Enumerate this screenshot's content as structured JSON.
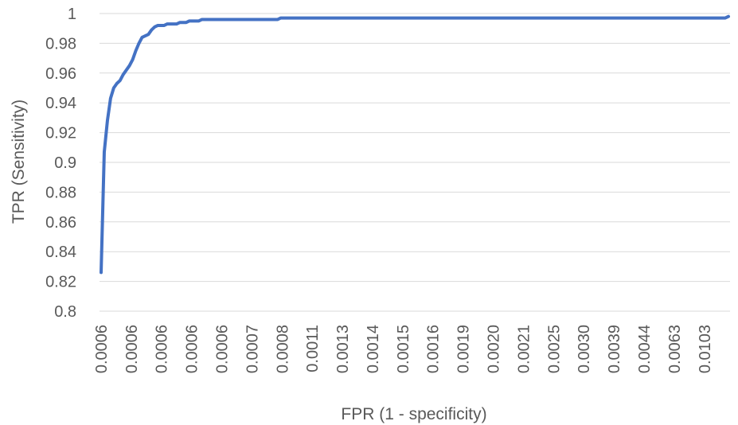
{
  "chart_data": {
    "type": "line",
    "title": "",
    "xlabel": "FPR (1 - specificity)",
    "ylabel": "TPR (Sensitivity)",
    "ylim": [
      0.8,
      1.0
    ],
    "y_ticks": [
      "0.8",
      "0.82",
      "0.84",
      "0.86",
      "0.88",
      "0.9",
      "0.92",
      "0.94",
      "0.96",
      "0.98",
      "1"
    ],
    "x_tick_labels": [
      "0.0006",
      "0.0006",
      "0.0006",
      "0.0006",
      "0.0006",
      "0.0007",
      "0.0008",
      "0.0011",
      "0.0013",
      "0.0014",
      "0.0015",
      "0.0016",
      "0.0019",
      "0.0020",
      "0.0021",
      "0.0025",
      "0.0030",
      "0.0039",
      "0.0044",
      "0.0063",
      "0.0103"
    ],
    "grid": true,
    "legend": "none",
    "colors": {
      "series": "#4472c4",
      "grid": "#d9d9d9",
      "text": "#595959"
    },
    "series": [
      {
        "values": [
          0.826,
          0.907,
          0.928,
          0.943,
          0.95,
          0.953,
          0.955,
          0.959,
          0.962,
          0.965,
          0.969,
          0.975,
          0.98,
          0.984,
          0.985,
          0.986,
          0.989,
          0.991,
          0.992,
          0.992,
          0.992,
          0.993,
          0.993,
          0.993,
          0.993,
          0.994,
          0.994,
          0.994,
          0.995,
          0.995,
          0.995,
          0.995,
          0.996,
          0.996,
          0.996,
          0.996,
          0.996,
          0.996,
          0.996,
          0.996,
          0.996,
          0.996,
          0.996,
          0.996,
          0.996,
          0.996,
          0.996,
          0.996,
          0.996,
          0.996,
          0.996,
          0.996,
          0.996,
          0.996,
          0.996,
          0.996,
          0.996,
          0.997,
          0.997,
          0.997,
          0.997,
          0.997,
          0.997,
          0.997,
          0.997,
          0.997,
          0.997,
          0.997,
          0.997,
          0.997,
          0.997,
          0.997,
          0.997,
          0.997,
          0.997,
          0.997,
          0.997,
          0.997,
          0.997,
          0.997,
          0.997,
          0.997,
          0.997,
          0.997,
          0.997,
          0.997,
          0.997,
          0.997,
          0.997,
          0.997,
          0.997,
          0.997,
          0.997,
          0.997,
          0.997,
          0.997,
          0.997,
          0.997,
          0.997,
          0.997,
          0.997,
          0.997,
          0.997,
          0.997,
          0.997,
          0.997,
          0.997,
          0.997,
          0.997,
          0.997,
          0.997,
          0.997,
          0.997,
          0.997,
          0.997,
          0.997,
          0.997,
          0.997,
          0.997,
          0.997,
          0.997,
          0.997,
          0.997,
          0.997,
          0.997,
          0.997,
          0.997,
          0.997,
          0.997,
          0.997,
          0.997,
          0.997,
          0.997,
          0.997,
          0.997,
          0.997,
          0.997,
          0.997,
          0.997,
          0.997,
          0.997,
          0.997,
          0.997,
          0.997,
          0.997,
          0.997,
          0.997,
          0.997,
          0.997,
          0.997,
          0.997,
          0.997,
          0.997,
          0.997,
          0.997,
          0.997,
          0.997,
          0.997,
          0.997,
          0.997,
          0.997,
          0.997,
          0.997,
          0.997,
          0.997,
          0.997,
          0.997,
          0.997,
          0.997,
          0.997,
          0.997,
          0.997,
          0.997,
          0.997,
          0.997,
          0.997,
          0.997,
          0.997,
          0.997,
          0.997,
          0.997,
          0.997,
          0.997,
          0.997,
          0.997,
          0.997,
          0.997,
          0.997,
          0.997,
          0.997,
          0.997,
          0.997,
          0.997,
          0.997,
          0.997,
          0.997,
          0.997,
          0.997,
          0.997,
          0.998
        ]
      }
    ]
  }
}
